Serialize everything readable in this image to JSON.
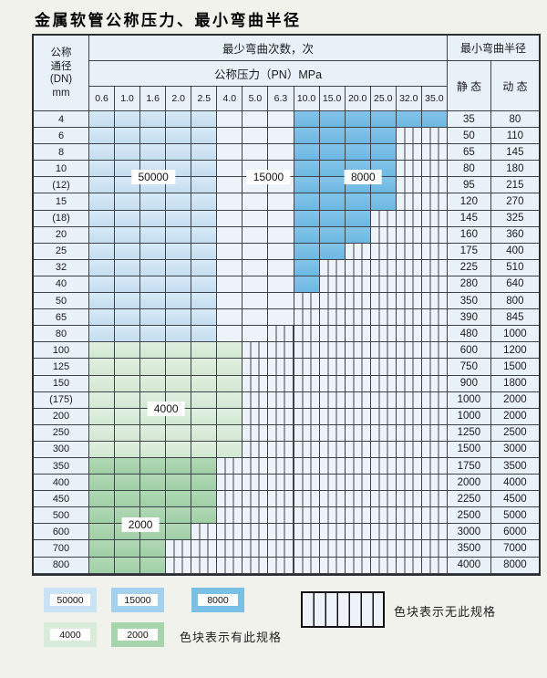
{
  "title": "金属软管公称压力、最小弯曲半径",
  "table": {
    "header": {
      "dn_label_lines": [
        "公称",
        "通径",
        "(DN)",
        "mm"
      ],
      "cycles_label": "最少弯曲次数，次",
      "pressure_label": "公称压力（PN）MPa",
      "pressure_ticks": [
        "0.6",
        "1.0",
        "1.6",
        "2.0",
        "2.5",
        "4.0",
        "5.0",
        "6.3",
        "10.0",
        "15.0",
        "20.0",
        "25.0",
        "32.0",
        "35.0"
      ],
      "radius_label": "最小弯曲半径",
      "static_label": "静 态",
      "dynamic_label": "动 态"
    },
    "shade_meaning": {
      "blue_light": "50000",
      "blue_medium": "15000",
      "blue_dark": "8000",
      "green_light": "4000",
      "green_dark": "2000",
      "blue_light_cols": [
        "0.6",
        "2.5"
      ],
      "blue_medium_cols": [
        "4.0",
        "6.3"
      ],
      "blue_dark_cols": [
        "10.0",
        "35.0"
      ]
    },
    "rows": [
      {
        "dn": "4",
        "colored": 14,
        "palette": "blue",
        "static": "35",
        "dynamic": "80"
      },
      {
        "dn": "6",
        "colored": 12,
        "palette": "blue",
        "static": "50",
        "dynamic": "110"
      },
      {
        "dn": "8",
        "colored": 12,
        "palette": "blue",
        "static": "65",
        "dynamic": "145"
      },
      {
        "dn": "10",
        "colored": 12,
        "palette": "blue",
        "static": "80",
        "dynamic": "180"
      },
      {
        "dn": "(12)",
        "colored": 12,
        "palette": "blue",
        "static": "95",
        "dynamic": "215"
      },
      {
        "dn": "15",
        "colored": 12,
        "palette": "blue",
        "static": "120",
        "dynamic": "270"
      },
      {
        "dn": "(18)",
        "colored": 11,
        "palette": "blue",
        "static": "145",
        "dynamic": "325"
      },
      {
        "dn": "20",
        "colored": 11,
        "palette": "blue",
        "static": "160",
        "dynamic": "360"
      },
      {
        "dn": "25",
        "colored": 10,
        "palette": "blue",
        "static": "175",
        "dynamic": "400"
      },
      {
        "dn": "32",
        "colored": 9,
        "palette": "blue",
        "static": "225",
        "dynamic": "510"
      },
      {
        "dn": "40",
        "colored": 9,
        "palette": "blue",
        "static": "280",
        "dynamic": "640"
      },
      {
        "dn": "50",
        "colored": 8,
        "palette": "blue",
        "static": "350",
        "dynamic": "800"
      },
      {
        "dn": "65",
        "colored": 8,
        "palette": "blue",
        "static": "390",
        "dynamic": "845"
      },
      {
        "dn": "80",
        "colored": 7,
        "palette": "blue",
        "static": "480",
        "dynamic": "1000"
      },
      {
        "dn": "100",
        "colored": 6,
        "palette": "green-light",
        "static": "600",
        "dynamic": "1200"
      },
      {
        "dn": "125",
        "colored": 6,
        "palette": "green-light",
        "static": "750",
        "dynamic": "1500"
      },
      {
        "dn": "150",
        "colored": 6,
        "palette": "green-light",
        "static": "900",
        "dynamic": "1800"
      },
      {
        "dn": "(175)",
        "colored": 6,
        "palette": "green-light",
        "static": "1000",
        "dynamic": "2000"
      },
      {
        "dn": "200",
        "colored": 6,
        "palette": "green-light",
        "static": "1000",
        "dynamic": "2000"
      },
      {
        "dn": "250",
        "colored": 6,
        "palette": "green-light",
        "static": "1250",
        "dynamic": "2500"
      },
      {
        "dn": "300",
        "colored": 6,
        "palette": "green-light",
        "static": "1500",
        "dynamic": "3000"
      },
      {
        "dn": "350",
        "colored": 5,
        "palette": "green-dark",
        "static": "1750",
        "dynamic": "3500"
      },
      {
        "dn": "400",
        "colored": 5,
        "palette": "green-dark",
        "static": "2000",
        "dynamic": "4000"
      },
      {
        "dn": "450",
        "colored": 5,
        "palette": "green-dark",
        "static": "2250",
        "dynamic": "4500"
      },
      {
        "dn": "500",
        "colored": 5,
        "palette": "green-dark",
        "static": "2500",
        "dynamic": "5000"
      },
      {
        "dn": "600",
        "colored": 4,
        "palette": "green-dark",
        "static": "3000",
        "dynamic": "6000"
      },
      {
        "dn": "700",
        "colored": 3,
        "palette": "green-dark",
        "static": "3500",
        "dynamic": "7000"
      },
      {
        "dn": "800",
        "colored": 3,
        "palette": "green-dark",
        "static": "4000",
        "dynamic": "8000"
      }
    ],
    "overlay_labels": [
      {
        "text": "50000",
        "col_anchor": 2.5,
        "row_anchor": 4
      },
      {
        "text": "15000",
        "col_anchor": 7,
        "row_anchor": 4
      },
      {
        "text": "8000",
        "col_anchor": 10.7,
        "row_anchor": 4
      },
      {
        "text": "4000",
        "col_anchor": 3,
        "row_anchor": 18
      },
      {
        "text": "2000",
        "col_anchor": 2,
        "row_anchor": 25
      }
    ]
  },
  "legend": {
    "swatches": [
      {
        "label": "50000",
        "color": "#c9e3f4"
      },
      {
        "label": "15000",
        "color": "#a3d1ed"
      },
      {
        "label": "8000",
        "color": "#79c0e7"
      },
      {
        "label": "4000",
        "color": "#d9ecd9"
      },
      {
        "label": "2000",
        "color": "#a6d4ab"
      }
    ],
    "has_spec_text": "色块表示有此规格",
    "no_spec_text": "色块表示无此规格"
  },
  "colors": {
    "blue_light": "#cde3f4",
    "blue_medium": "#a7d2ed",
    "blue_dark": "#76bde5",
    "green_light": "#d9ebd9",
    "green_dark": "#a5d3aa",
    "grid": "#3d4349",
    "page_bg": "#f2f2ec"
  }
}
